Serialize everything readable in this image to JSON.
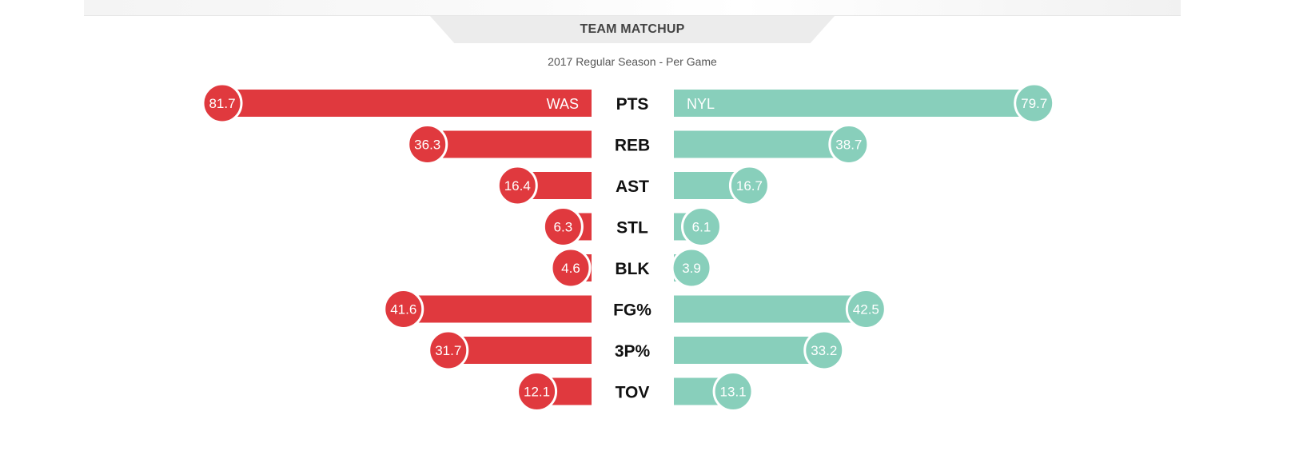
{
  "header": {
    "title": "TEAM MATCHUP",
    "subtitle": "2017 Regular Season - Per Game"
  },
  "colors": {
    "left_team": "#e0393e",
    "right_team": "#88cfbb"
  },
  "chart_data": {
    "type": "bar",
    "orientation": "diverging-horizontal",
    "title": "TEAM MATCHUP",
    "subtitle": "2017 Regular Season - Per Game",
    "categories": [
      "PTS",
      "REB",
      "AST",
      "STL",
      "BLK",
      "FG%",
      "3P%",
      "TOV"
    ],
    "series": [
      {
        "name": "WAS",
        "side": "left",
        "color": "#e0393e",
        "values": [
          81.7,
          36.3,
          16.4,
          6.3,
          4.6,
          41.6,
          31.7,
          12.1
        ],
        "labels": [
          "81.7",
          "36.3",
          "16.4",
          "6.3",
          "4.6",
          "41.6",
          "31.7",
          "12.1"
        ]
      },
      {
        "name": "NYL",
        "side": "right",
        "color": "#88cfbb",
        "values": [
          79.7,
          38.7,
          16.7,
          6.1,
          3.9,
          42.5,
          33.2,
          13.1
        ],
        "labels": [
          "79.7",
          "38.7",
          "16.7",
          "6.1",
          "3.9",
          "42.5",
          "33.2",
          "13.1"
        ]
      }
    ],
    "xlim": [
      0,
      81.7
    ],
    "grid": false,
    "legend": "in-bar team labels on first row"
  }
}
